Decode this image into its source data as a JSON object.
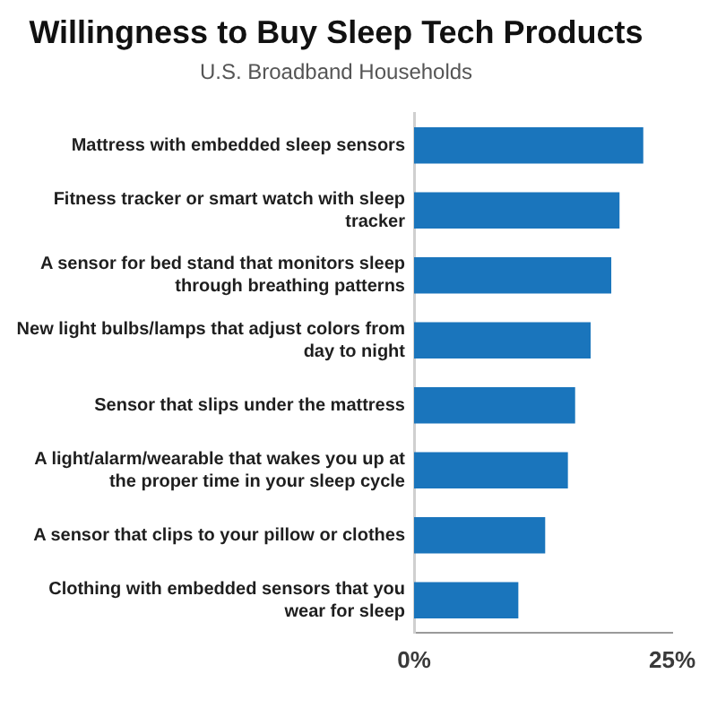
{
  "chart_data": {
    "type": "bar",
    "orientation": "horizontal",
    "title": "Willingness to Buy Sleep Tech Products",
    "subtitle": "U.S. Broadband Households",
    "categories": [
      "Mattress with embedded sleep sensors",
      "Fitness tracker or smart watch with sleep tracker",
      "A sensor for bed stand that monitors sleep through breathing patterns",
      "New light bulbs/lamps that adjust colors from day to night",
      "Sensor that slips under the mattress",
      "A light/alarm/wearable that wakes you up at the proper time in your sleep cycle",
      "A sensor that clips to your pillow or clothes",
      "Clothing with embedded sensors that you wear for sleep"
    ],
    "values": [
      22.2,
      19.9,
      19.1,
      17.1,
      15.6,
      14.9,
      12.7,
      10.1
    ],
    "color": "#1a75bc",
    "xlim": [
      0,
      25
    ],
    "xticks": [
      {
        "value": 0,
        "label": "0%"
      },
      {
        "value": 25,
        "label": "25%"
      }
    ],
    "grid": false,
    "legend": false
  }
}
